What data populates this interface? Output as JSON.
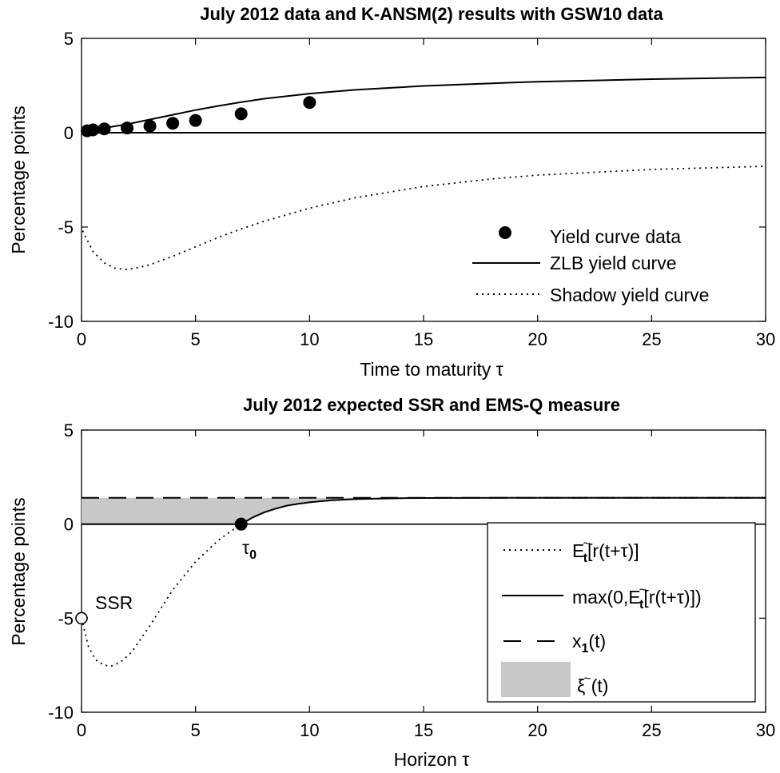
{
  "figure": {
    "background": "#ffffff",
    "shade_color": "#c8c8c8"
  },
  "chart_data": [
    {
      "type": "line",
      "title": "July 2012 data and K-ANSM(2) results with GSW10 data",
      "xlabel": "Time to maturity τ",
      "ylabel": "Percentage points",
      "xlim": [
        0,
        30
      ],
      "ylim": [
        -10,
        5
      ],
      "xticks": [
        0,
        5,
        10,
        15,
        20,
        25,
        30
      ],
      "yticks": [
        5,
        0,
        -5,
        -10
      ],
      "grid": false,
      "legend_position": "bottom-right",
      "series": [
        {
          "name": "Yield curve data",
          "style": "markers",
          "x": [
            0.25,
            0.5,
            1,
            2,
            3,
            4,
            5,
            7,
            10
          ],
          "y": [
            0.1,
            0.15,
            0.2,
            0.25,
            0.35,
            0.5,
            0.65,
            1.0,
            1.6
          ]
        },
        {
          "name": "ZLB yield curve",
          "style": "solid",
          "x": [
            0.1,
            0.5,
            1,
            2,
            3,
            4,
            5,
            6,
            7,
            8,
            10,
            12,
            15,
            18,
            20,
            25,
            30
          ],
          "y": [
            0.1,
            0.15,
            0.25,
            0.45,
            0.7,
            0.95,
            1.2,
            1.42,
            1.62,
            1.8,
            2.07,
            2.27,
            2.48,
            2.62,
            2.7,
            2.84,
            2.93
          ]
        },
        {
          "name": "Shadow yield curve",
          "style": "dotted",
          "x": [
            0.05,
            0.5,
            1,
            1.5,
            2,
            2.5,
            3,
            4,
            5,
            6,
            7,
            8,
            10,
            12,
            15,
            18,
            20,
            25,
            30
          ],
          "y": [
            -5.2,
            -6.3,
            -6.9,
            -7.2,
            -7.25,
            -7.15,
            -7.0,
            -6.55,
            -6.05,
            -5.55,
            -5.1,
            -4.7,
            -4.0,
            -3.45,
            -2.85,
            -2.45,
            -2.25,
            -1.95,
            -1.78
          ]
        },
        {
          "name": "",
          "style": "zero-line",
          "x": [
            0,
            30
          ],
          "y": [
            0,
            0
          ]
        }
      ]
    },
    {
      "type": "line",
      "title": "July 2012 expected SSR and EMS-Q measure",
      "xlabel": "Horizon τ",
      "ylabel": "Percentage points",
      "xlim": [
        0,
        30
      ],
      "ylim": [
        -10,
        5
      ],
      "xticks": [
        0,
        5,
        10,
        15,
        20,
        25,
        30
      ],
      "yticks": [
        5,
        0,
        -5,
        -10
      ],
      "grid": false,
      "legend_position": "right",
      "annotations": [
        {
          "text": "SSR",
          "x": 0,
          "y": -5
        },
        {
          "text": "τ",
          "sub": "0",
          "x": 7,
          "y": 0
        }
      ],
      "series": [
        {
          "name": "Et~[r(t+τ)]",
          "legend_parts": {
            "a": "E",
            "b": "~",
            "c": "t",
            "d": "[r(t+τ)]"
          },
          "style": "dotted",
          "x": [
            0,
            0.3,
            0.6,
            1.0,
            1.3,
            1.7,
            2.2,
            3,
            4,
            5,
            6,
            7,
            7.5,
            8,
            8.5,
            9,
            9.5,
            10,
            10.5,
            11,
            12,
            13,
            14,
            15,
            20,
            30
          ],
          "y": [
            -5.0,
            -6.5,
            -7.2,
            -7.5,
            -7.55,
            -7.35,
            -6.8,
            -5.4,
            -3.5,
            -2.0,
            -0.85,
            0.0,
            0.35,
            0.62,
            0.82,
            0.98,
            1.08,
            1.16,
            1.22,
            1.27,
            1.33,
            1.36,
            1.38,
            1.39,
            1.4,
            1.4
          ]
        },
        {
          "name": "max(0,Et~[r(t+τ)])",
          "legend_parts": {
            "a": "max(0,E",
            "b": "~",
            "c": "t",
            "d": "[r(t+τ)])"
          },
          "style": "solid",
          "x": [
            0,
            7,
            7.5,
            8,
            8.5,
            9,
            9.5,
            10,
            10.5,
            11,
            12,
            13,
            14,
            15,
            20,
            30
          ],
          "y": [
            0,
            0.0,
            0.35,
            0.62,
            0.82,
            0.98,
            1.08,
            1.16,
            1.22,
            1.27,
            1.33,
            1.36,
            1.38,
            1.39,
            1.4,
            1.4
          ]
        },
        {
          "name": "x1(t)",
          "legend_parts": {
            "a": "x",
            "c": "1",
            "d": "(t)"
          },
          "style": "dashed",
          "x": [
            0,
            30
          ],
          "y": [
            1.4,
            1.4
          ]
        },
        {
          "name": "ξ~(t)",
          "legend_parts": {
            "a": "ξ",
            "b": "~",
            "d": "(t)"
          },
          "style": "shaded"
        },
        {
          "name": "",
          "style": "ssr-marker",
          "x": [
            0
          ],
          "y": [
            -5
          ]
        },
        {
          "name": "",
          "style": "tau0-marker",
          "x": [
            7
          ],
          "y": [
            0
          ]
        }
      ]
    }
  ]
}
